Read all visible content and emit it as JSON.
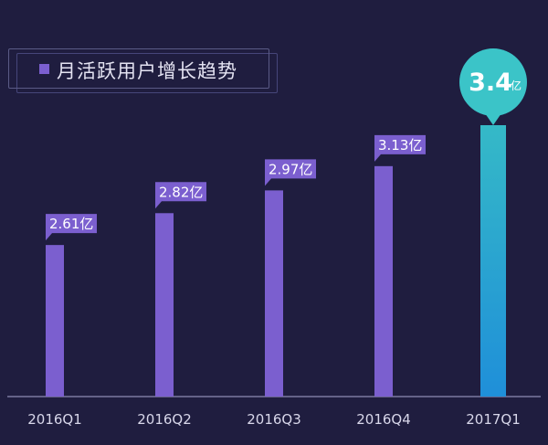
{
  "chart_data": {
    "type": "bar",
    "title": "月活跃用户增长趋势",
    "unit": "亿",
    "categories": [
      "2016Q1",
      "2016Q2",
      "2016Q3",
      "2016Q4",
      "2017Q1"
    ],
    "values": [
      2.61,
      2.82,
      2.97,
      3.13,
      3.4
    ],
    "labels": [
      "2.61",
      "2.82",
      "2.97",
      "3.13",
      "3.4"
    ],
    "highlight_index": 4,
    "colors": {
      "background": "#1f1d3f",
      "bar": "#7b5fcf",
      "highlight_top": "#35b9c7",
      "highlight_bottom": "#1f8fd9",
      "bubble": "#3bc4c8",
      "axis": "#8e8bb5",
      "label_text": "#ffffff",
      "tick_text": "#d8d7ea"
    }
  }
}
